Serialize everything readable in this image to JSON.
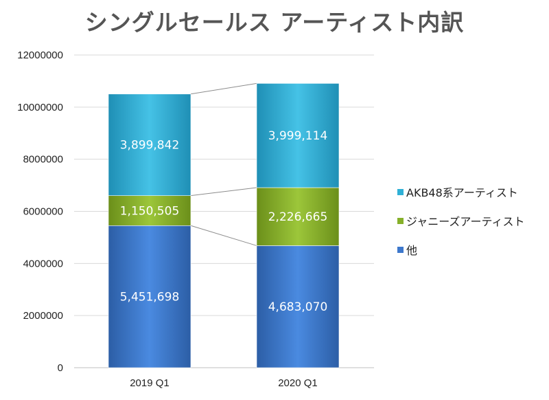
{
  "chart_data": {
    "type": "bar",
    "stacked": true,
    "title": "シングルセールス アーティスト内訳",
    "categories": [
      "2019 Q1",
      "2020 Q1"
    ],
    "series": [
      {
        "name": "他",
        "values": [
          5451698,
          4683070
        ],
        "labels": [
          "5,451,698",
          "4,683,070"
        ],
        "color": "#3d78cc"
      },
      {
        "name": "ジャニーズアーティスト",
        "values": [
          1150505,
          2226665
        ],
        "labels": [
          "1,150,505",
          "2,226,665"
        ],
        "color": "#86b02a"
      },
      {
        "name": "AKB48系アーティスト",
        "values": [
          3899842,
          3999114
        ],
        "labels": [
          "3,899,842",
          "3,999,114"
        ],
        "color": "#2fb0d6"
      }
    ],
    "legend_order": [
      2,
      1,
      0
    ],
    "legend_position": "right",
    "ylim": [
      0,
      12000000
    ],
    "yticks": [
      0,
      2000000,
      4000000,
      6000000,
      8000000,
      10000000,
      12000000
    ],
    "ytick_labels": [
      "0",
      "2000000",
      "4000000",
      "6000000",
      "8000000",
      "10000000",
      "12000000"
    ],
    "grid": true,
    "series_lines": true,
    "xlabel": "",
    "ylabel": ""
  }
}
